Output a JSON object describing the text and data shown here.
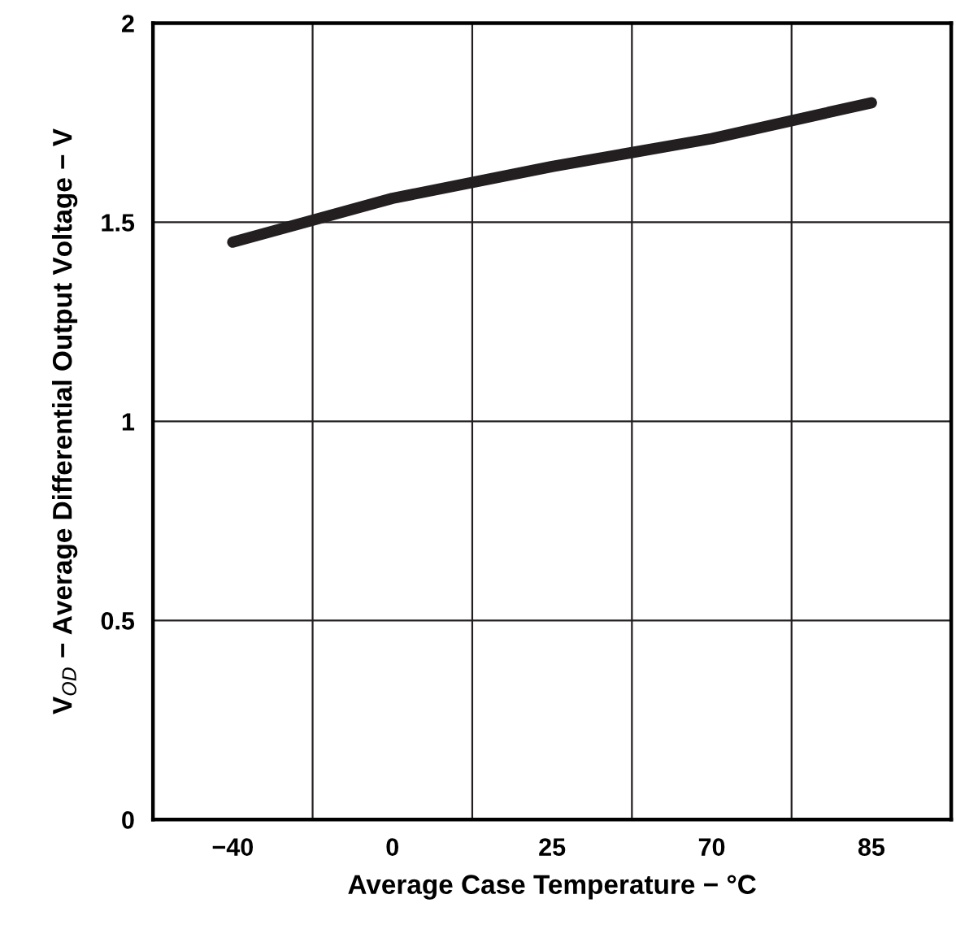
{
  "chart_data": {
    "type": "line",
    "xlabel": "Average Case Temperature − °C",
    "ylabel": "V$_{OD}$ − Average Differential Output Voltage − V",
    "categories": [
      "−40",
      "0",
      "25",
      "70",
      "85"
    ],
    "series": [
      {
        "color": "#231f20",
        "values": [
          1.45,
          1.56,
          1.64,
          1.71,
          1.8
        ]
      }
    ],
    "ylim": [
      0,
      2
    ],
    "yticks": [
      0,
      0.5,
      1,
      1.5,
      2
    ],
    "grid": true,
    "line_style": "solid",
    "marker": "none"
  }
}
